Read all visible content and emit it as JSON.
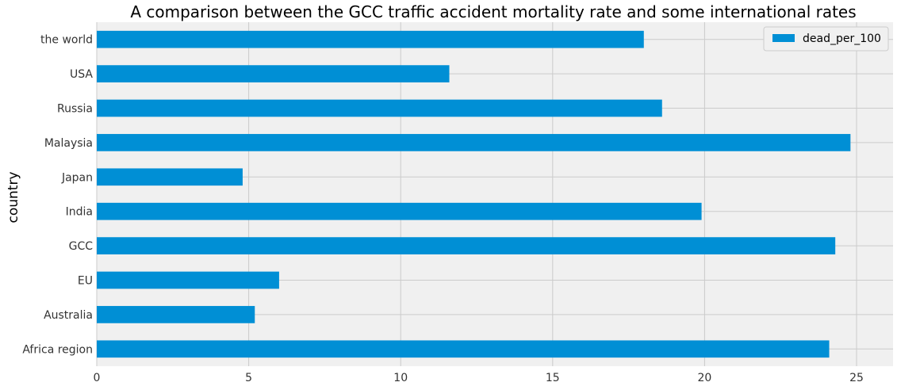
{
  "chart_data": {
    "type": "bar",
    "orientation": "horizontal",
    "title": "A comparison between the GCC traffic accident mortality rate and some international rates",
    "ylabel": "country",
    "xlabel": "",
    "categories": [
      "Africa region",
      "Australia",
      "EU",
      "GCC",
      "India",
      "Japan",
      "Malaysia",
      "Russia",
      "USA",
      "the world"
    ],
    "series": [
      {
        "name": "dead_per_100",
        "values": [
          24.1,
          5.2,
          6.0,
          24.3,
          19.9,
          4.8,
          24.8,
          18.6,
          11.6,
          18.0
        ]
      }
    ],
    "xlim": [
      0,
      26.2
    ],
    "xticks": [
      0,
      5,
      10,
      15,
      20,
      25
    ],
    "grid": true,
    "legend_position": "top-right",
    "colors": {
      "bar": "#008fd5",
      "plot_bg": "#f0f0f0",
      "grid": "#cbcbcb"
    }
  }
}
